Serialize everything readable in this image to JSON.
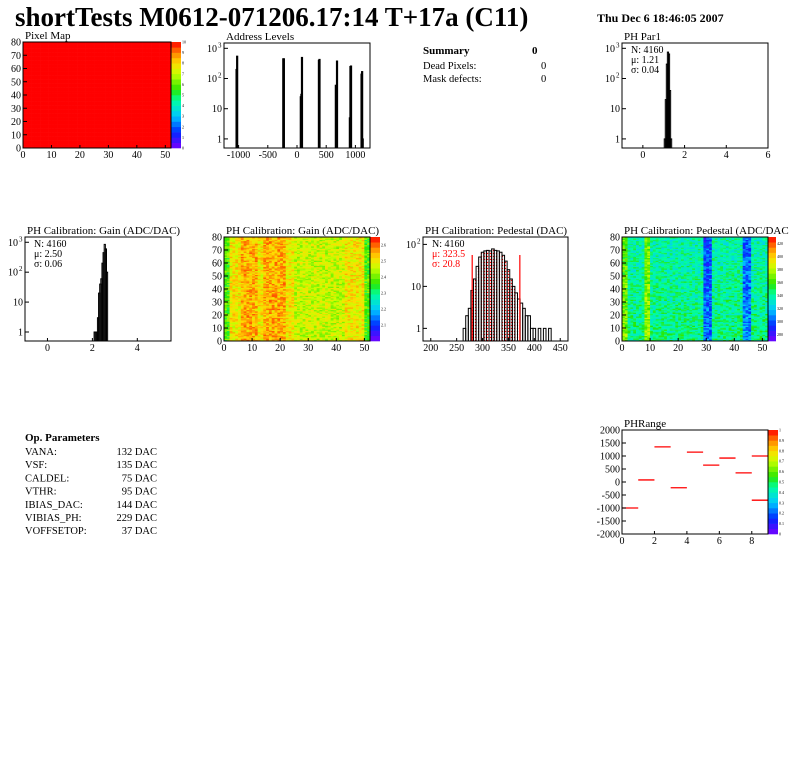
{
  "header": {
    "title": "shortTests M0612-071206.17:14 T+17a (C11)",
    "date": "Thu Dec  6 18:46:05 2007"
  },
  "summary": {
    "title": "Summary",
    "total": "0",
    "rows": [
      {
        "label": "Dead Pixels:",
        "value": "0"
      },
      {
        "label": "Mask defects:",
        "value": "0"
      }
    ]
  },
  "op_parameters": {
    "title": "Op. Parameters",
    "rows": [
      {
        "label": "VANA:",
        "value": "132 DAC"
      },
      {
        "label": "VSF:",
        "value": "135 DAC"
      },
      {
        "label": "CALDEL:",
        "value": "75 DAC"
      },
      {
        "label": "VTHR:",
        "value": "95 DAC"
      },
      {
        "label": "IBIAS_DAC:",
        "value": "144 DAC"
      },
      {
        "label": "VIBIAS_PH:",
        "value": "229 DAC"
      },
      {
        "label": "VOFFSETOP:",
        "value": "37 DAC"
      }
    ]
  },
  "colors": {
    "hist_line": "#000000",
    "fit": "#ff0000",
    "accent": "#ff0000"
  },
  "chart_data": [
    {
      "id": "pixelmap",
      "type": "heatmap",
      "title": "Pixel Map",
      "xlim": [
        0,
        52
      ],
      "ylim": [
        0,
        80
      ],
      "xticks": [
        "0",
        "10",
        "20",
        "30",
        "40",
        "50"
      ],
      "yticks": [
        "0",
        "10",
        "20",
        "30",
        "40",
        "50",
        "60",
        "70",
        "80"
      ],
      "zlim": [
        0,
        10
      ],
      "zticks": [
        "0",
        "1",
        "2",
        "3",
        "4",
        "5",
        "6",
        "7",
        "8",
        "9",
        "10"
      ],
      "uniform_value": 10
    },
    {
      "id": "address",
      "type": "bar",
      "title": "Address Levels",
      "xlim": [
        -1250,
        1250
      ],
      "ylog": true,
      "ylim": [
        0.5,
        1500
      ],
      "xticks": [
        "-1000",
        "-500",
        "0",
        "500",
        "1000"
      ],
      "yticks": [
        "1",
        "10",
        "10^2",
        "10^3"
      ],
      "bins": [
        [
          -1040,
          200
        ],
        [
          -1030,
          550
        ],
        [
          -240,
          450
        ],
        [
          -230,
          450
        ],
        [
          60,
          25
        ],
        [
          70,
          30
        ],
        [
          80,
          500
        ],
        [
          370,
          400
        ],
        [
          380,
          430
        ],
        [
          660,
          60
        ],
        [
          670,
          50
        ],
        [
          680,
          380
        ],
        [
          900,
          5
        ],
        [
          910,
          250
        ],
        [
          920,
          260
        ],
        [
          1100,
          140
        ],
        [
          1110,
          170
        ],
        [
          1120,
          1
        ]
      ],
      "binwidth": 10
    },
    {
      "id": "phpar1",
      "type": "bar",
      "title": "PH Par1",
      "xlim": [
        -1,
        6
      ],
      "ylog": true,
      "ylim": [
        0.5,
        1500
      ],
      "xticks": [
        "0",
        "2",
        "4",
        "6"
      ],
      "yticks": [
        "1",
        "10",
        "10^2",
        "10^3"
      ],
      "stats": {
        "n": "N: 4160",
        "mean": "μ: 1.21",
        "sigma": "σ: 0.04"
      },
      "bins": [
        [
          1.05,
          1
        ],
        [
          1.1,
          20
        ],
        [
          1.15,
          300
        ],
        [
          1.2,
          750
        ],
        [
          1.25,
          650
        ],
        [
          1.3,
          40
        ],
        [
          1.35,
          1
        ]
      ],
      "binwidth": 0.05
    },
    {
      "id": "gainhist",
      "type": "bar",
      "title": "PH Calibration: Gain (ADC/DAC)",
      "xlim": [
        -1,
        5.5
      ],
      "ylog": true,
      "ylim": [
        0.5,
        1500
      ],
      "xticks": [
        "0",
        "2",
        "4"
      ],
      "yticks": [
        "1",
        "10",
        "10^2",
        "10^3"
      ],
      "stats": {
        "n": "N: 4160",
        "mean": "μ: 2.50",
        "sigma": "σ: 0.06"
      },
      "bins": [
        [
          2.1,
          1
        ],
        [
          2.15,
          1
        ],
        [
          2.2,
          1
        ],
        [
          2.25,
          3
        ],
        [
          2.3,
          20
        ],
        [
          2.35,
          40
        ],
        [
          2.4,
          60
        ],
        [
          2.45,
          200
        ],
        [
          2.5,
          450
        ],
        [
          2.55,
          850
        ],
        [
          2.6,
          600
        ],
        [
          2.65,
          100
        ]
      ],
      "binwidth": 0.05
    },
    {
      "id": "gainmap",
      "type": "heatmap",
      "title": "PH Calibration: Gain (ADC/DAC)",
      "xlim": [
        0,
        52
      ],
      "ylim": [
        0,
        80
      ],
      "xticks": [
        "0",
        "10",
        "20",
        "30",
        "40",
        "50"
      ],
      "yticks": [
        "0",
        "10",
        "20",
        "30",
        "40",
        "50",
        "60",
        "70",
        "80"
      ],
      "zlim": [
        2.0,
        2.65
      ],
      "zticks": [
        "2.1",
        "2.2",
        "2.3",
        "2.4",
        "2.5",
        "2.6"
      ]
    },
    {
      "id": "pedhist",
      "type": "bar",
      "title": "PH Calibration: Pedestal (DAC)",
      "xlim": [
        185,
        465
      ],
      "ylog": true,
      "ylim": [
        0.5,
        150
      ],
      "xticks": [
        "200",
        "250",
        "300",
        "350",
        "400",
        "450"
      ],
      "yticks": [
        "1",
        "10",
        "10^2"
      ],
      "stats": {
        "n": "N: 4160",
        "mean": "μ: 323.5",
        "sigma": "σ: 20.8"
      },
      "fit_range": [
        280,
        372
      ],
      "bins": [
        [
          265,
          1
        ],
        [
          270,
          2
        ],
        [
          275,
          3
        ],
        [
          280,
          8
        ],
        [
          285,
          15
        ],
        [
          290,
          30
        ],
        [
          295,
          50
        ],
        [
          300,
          65
        ],
        [
          305,
          70
        ],
        [
          310,
          72
        ],
        [
          315,
          70
        ],
        [
          320,
          78
        ],
        [
          325,
          72
        ],
        [
          330,
          70
        ],
        [
          335,
          65
        ],
        [
          340,
          55
        ],
        [
          345,
          40
        ],
        [
          350,
          25
        ],
        [
          355,
          15
        ],
        [
          360,
          10
        ],
        [
          365,
          7
        ],
        [
          370,
          5
        ],
        [
          375,
          4
        ],
        [
          380,
          3
        ],
        [
          385,
          2
        ],
        [
          390,
          2
        ],
        [
          395,
          1
        ],
        [
          400,
          1
        ],
        [
          410,
          1
        ],
        [
          420,
          1
        ],
        [
          430,
          1
        ]
      ],
      "binwidth": 5
    },
    {
      "id": "pedmap",
      "type": "heatmap",
      "title": "PH Calibration: Pedestal (ADC/DAC",
      "xlim": [
        0,
        52
      ],
      "ylim": [
        0,
        80
      ],
      "xticks": [
        "0",
        "10",
        "20",
        "30",
        "40",
        "50"
      ],
      "yticks": [
        "0",
        "10",
        "20",
        "30",
        "40",
        "50",
        "60",
        "70",
        "80"
      ],
      "zlim": [
        270,
        430
      ],
      "zticks": [
        "280",
        "300",
        "320",
        "340",
        "360",
        "380",
        "400",
        "420"
      ]
    },
    {
      "id": "phrange",
      "type": "heatmap",
      "title": "PHRange",
      "xlim": [
        0,
        9
      ],
      "ylim": [
        -2000,
        2000
      ],
      "xticks": [
        "0",
        "2",
        "4",
        "6",
        "8"
      ],
      "yticks": [
        "-2000",
        "-1500",
        "-1000",
        "-500",
        "0",
        "500",
        "1000",
        "1500",
        "2000"
      ],
      "zlim": [
        0,
        1
      ],
      "zticks": [
        "0",
        "0.1",
        "0.2",
        "0.3",
        "0.4",
        "0.5",
        "0.6",
        "0.7",
        "0.8",
        "0.9",
        "1"
      ],
      "segments": [
        [
          0,
          -1000
        ],
        [
          1,
          80
        ],
        [
          2,
          1350
        ],
        [
          3,
          -220
        ],
        [
          4,
          1150
        ],
        [
          5,
          650
        ],
        [
          6,
          920
        ],
        [
          7,
          350
        ],
        [
          8,
          1000
        ],
        [
          8,
          -700
        ]
      ]
    }
  ]
}
